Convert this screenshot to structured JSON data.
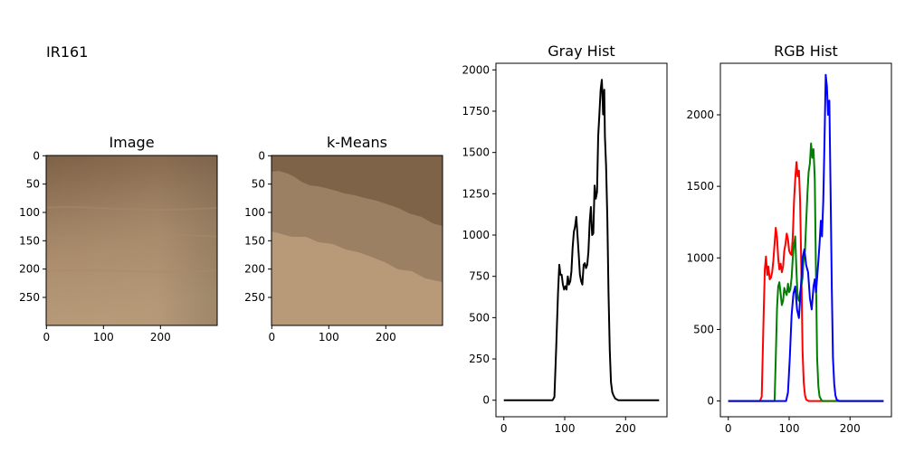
{
  "figure_label": "IR161",
  "chart_data": [
    {
      "type": "image",
      "title": "Image",
      "xticks": [
        "0",
        "100",
        "200"
      ],
      "yticks": [
        "0",
        "50",
        "100",
        "150",
        "200",
        "250"
      ],
      "xlim": [
        0,
        299
      ],
      "ylim": [
        299,
        0
      ]
    },
    {
      "type": "image",
      "title": "k-Means",
      "xticks": [
        "0",
        "100",
        "200"
      ],
      "yticks": [
        "0",
        "50",
        "100",
        "150",
        "200",
        "250"
      ],
      "xlim": [
        0,
        299
      ],
      "ylim": [
        299,
        0
      ],
      "cluster_colors": [
        "#7e6349",
        "#9c8064",
        "#b89a78"
      ]
    },
    {
      "type": "line",
      "title": "Gray Hist",
      "xlim": [
        -13,
        268
      ],
      "ylim": [
        -100,
        2040
      ],
      "xticks": [
        0,
        100,
        200
      ],
      "yticks": [
        0,
        250,
        500,
        750,
        1000,
        1250,
        1500,
        1750,
        2000
      ],
      "series": [
        {
          "color": "#000000",
          "points": [
            [
              0,
              0
            ],
            [
              80,
              0
            ],
            [
              83,
              20
            ],
            [
              86,
              320
            ],
            [
              89,
              650
            ],
            [
              91,
              820
            ],
            [
              93,
              760
            ],
            [
              95,
              760
            ],
            [
              97,
              700
            ],
            [
              99,
              670
            ],
            [
              101,
              690
            ],
            [
              103,
              670
            ],
            [
              105,
              750
            ],
            [
              107,
              700
            ],
            [
              109,
              720
            ],
            [
              111,
              780
            ],
            [
              113,
              920
            ],
            [
              115,
              1020
            ],
            [
              117,
              1050
            ],
            [
              119,
              1110
            ],
            [
              121,
              1000
            ],
            [
              123,
              880
            ],
            [
              125,
              760
            ],
            [
              127,
              720
            ],
            [
              129,
              700
            ],
            [
              131,
              820
            ],
            [
              133,
              830
            ],
            [
              135,
              800
            ],
            [
              137,
              820
            ],
            [
              139,
              900
            ],
            [
              141,
              1080
            ],
            [
              143,
              1170
            ],
            [
              145,
              1000
            ],
            [
              147,
              1010
            ],
            [
              149,
              1300
            ],
            [
              151,
              1220
            ],
            [
              153,
              1260
            ],
            [
              155,
              1600
            ],
            [
              157,
              1730
            ],
            [
              159,
              1880
            ],
            [
              161,
              1940
            ],
            [
              162,
              1850
            ],
            [
              163,
              1730
            ],
            [
              164,
              1800
            ],
            [
              165,
              1880
            ],
            [
              166,
              1600
            ],
            [
              168,
              1420
            ],
            [
              170,
              1100
            ],
            [
              172,
              650
            ],
            [
              174,
              300
            ],
            [
              176,
              110
            ],
            [
              178,
              50
            ],
            [
              180,
              30
            ],
            [
              183,
              10
            ],
            [
              188,
              0
            ],
            [
              255,
              0
            ]
          ]
        }
      ]
    },
    {
      "type": "line",
      "title": "RGB Hist",
      "xlim": [
        -13,
        268
      ],
      "ylim": [
        -110,
        2360
      ],
      "xticks": [
        0,
        100,
        200
      ],
      "yticks": [
        0,
        500,
        1000,
        1500,
        2000
      ],
      "series": [
        {
          "color": "#ff0000",
          "points": [
            [
              0,
              0
            ],
            [
              52,
              0
            ],
            [
              55,
              30
            ],
            [
              58,
              600
            ],
            [
              60,
              920
            ],
            [
              62,
              1010
            ],
            [
              64,
              880
            ],
            [
              66,
              940
            ],
            [
              68,
              850
            ],
            [
              70,
              860
            ],
            [
              72,
              900
            ],
            [
              74,
              980
            ],
            [
              76,
              1100
            ],
            [
              78,
              1210
            ],
            [
              80,
              1140
            ],
            [
              82,
              1000
            ],
            [
              84,
              920
            ],
            [
              86,
              960
            ],
            [
              88,
              900
            ],
            [
              90,
              940
            ],
            [
              92,
              1050
            ],
            [
              94,
              1100
            ],
            [
              96,
              1170
            ],
            [
              98,
              1130
            ],
            [
              100,
              1050
            ],
            [
              102,
              1030
            ],
            [
              104,
              1020
            ],
            [
              106,
              1150
            ],
            [
              108,
              1400
            ],
            [
              110,
              1550
            ],
            [
              112,
              1670
            ],
            [
              114,
              1570
            ],
            [
              116,
              1610
            ],
            [
              118,
              1400
            ],
            [
              120,
              900
            ],
            [
              122,
              350
            ],
            [
              124,
              130
            ],
            [
              126,
              40
            ],
            [
              128,
              10
            ],
            [
              132,
              0
            ],
            [
              255,
              0
            ]
          ]
        },
        {
          "color": "#008000",
          "points": [
            [
              0,
              0
            ],
            [
              76,
              0
            ],
            [
              78,
              300
            ],
            [
              80,
              650
            ],
            [
              82,
              800
            ],
            [
              84,
              830
            ],
            [
              86,
              750
            ],
            [
              88,
              670
            ],
            [
              90,
              700
            ],
            [
              92,
              790
            ],
            [
              94,
              760
            ],
            [
              96,
              740
            ],
            [
              98,
              820
            ],
            [
              100,
              760
            ],
            [
              102,
              780
            ],
            [
              104,
              860
            ],
            [
              106,
              1000
            ],
            [
              108,
              1100
            ],
            [
              110,
              1150
            ],
            [
              112,
              900
            ],
            [
              114,
              720
            ],
            [
              116,
              700
            ],
            [
              118,
              760
            ],
            [
              120,
              810
            ],
            [
              122,
              860
            ],
            [
              124,
              1010
            ],
            [
              126,
              1050
            ],
            [
              128,
              1250
            ],
            [
              130,
              1450
            ],
            [
              132,
              1600
            ],
            [
              134,
              1660
            ],
            [
              136,
              1800
            ],
            [
              138,
              1700
            ],
            [
              140,
              1760
            ],
            [
              142,
              1550
            ],
            [
              144,
              900
            ],
            [
              146,
              300
            ],
            [
              148,
              100
            ],
            [
              150,
              30
            ],
            [
              154,
              0
            ],
            [
              255,
              0
            ]
          ]
        },
        {
          "color": "#0000ff",
          "points": [
            [
              0,
              0
            ],
            [
              95,
              0
            ],
            [
              98,
              60
            ],
            [
              101,
              300
            ],
            [
              104,
              600
            ],
            [
              107,
              750
            ],
            [
              110,
              800
            ],
            [
              113,
              640
            ],
            [
              116,
              580
            ],
            [
              119,
              780
            ],
            [
              122,
              1000
            ],
            [
              125,
              1060
            ],
            [
              128,
              950
            ],
            [
              131,
              900
            ],
            [
              134,
              720
            ],
            [
              137,
              640
            ],
            [
              140,
              800
            ],
            [
              142,
              850
            ],
            [
              144,
              760
            ],
            [
              146,
              860
            ],
            [
              148,
              980
            ],
            [
              150,
              1100
            ],
            [
              152,
              1260
            ],
            [
              154,
              1150
            ],
            [
              156,
              1400
            ],
            [
              158,
              1800
            ],
            [
              160,
              2280
            ],
            [
              162,
              2200
            ],
            [
              164,
              2000
            ],
            [
              166,
              2100
            ],
            [
              168,
              1500
            ],
            [
              170,
              800
            ],
            [
              172,
              300
            ],
            [
              174,
              120
            ],
            [
              176,
              40
            ],
            [
              178,
              10
            ],
            [
              182,
              0
            ],
            [
              255,
              0
            ]
          ]
        }
      ]
    }
  ]
}
